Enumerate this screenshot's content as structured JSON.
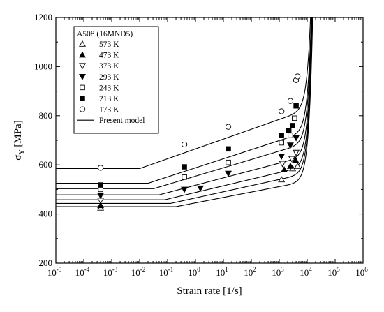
{
  "chart_data": {
    "type": "scatter",
    "xlabel": "Strain rate [1/s]",
    "ylabel_main": "σ",
    "ylabel_sub": "Y",
    "ylabel_unit": " [MPa]",
    "xscale": "log",
    "xlim_exp": [
      -5,
      6
    ],
    "ylim": [
      200,
      1200
    ],
    "yticks": [
      200,
      400,
      600,
      800,
      1000,
      1200
    ],
    "xtick_base": "10",
    "xtick_exponents": [
      "-5",
      "-4",
      "-3",
      "-2",
      "-1",
      "0",
      "1",
      "2",
      "3",
      "4",
      "5",
      "6"
    ],
    "legend": {
      "title": "A508 (16MND5)",
      "position": "top-left",
      "model_label": "Present model"
    },
    "series": [
      {
        "name": "573 K",
        "marker": "triangle-up-open",
        "x": [
          0.0004,
          1200,
          3000,
          4500
        ],
        "y": [
          425,
          540,
          585,
          595
        ]
      },
      {
        "name": "473 K",
        "marker": "triangle-up-filled",
        "x": [
          0.0004,
          1500,
          2500,
          3800
        ],
        "y": [
          435,
          580,
          595,
          620
        ]
      },
      {
        "name": "373 K",
        "marker": "triangle-down-open",
        "x": [
          0.0004,
          1300,
          2800,
          4000
        ],
        "y": [
          455,
          605,
          625,
          650
        ]
      },
      {
        "name": "293 K",
        "marker": "triangle-down-filled",
        "x": [
          0.0004,
          0.4,
          1.5,
          15,
          1200,
          2500,
          4000
        ],
        "y": [
          475,
          500,
          505,
          565,
          635,
          680,
          710
        ]
      },
      {
        "name": "243 K",
        "marker": "square-open",
        "x": [
          0.0004,
          0.4,
          15,
          1200,
          2500,
          3500
        ],
        "y": [
          500,
          550,
          610,
          690,
          720,
          790
        ]
      },
      {
        "name": "213 K",
        "marker": "square-filled",
        "x": [
          0.0004,
          0.4,
          15,
          1200,
          2200,
          3000,
          4000
        ],
        "y": [
          518,
          592,
          665,
          720,
          740,
          760,
          840
        ]
      },
      {
        "name": "173 K",
        "marker": "circle-open",
        "x": [
          0.0004,
          0.4,
          15,
          1200,
          2500,
          4000,
          4500
        ],
        "y": [
          588,
          683,
          755,
          818,
          860,
          945,
          960
        ]
      }
    ],
    "model_curves": [
      {
        "name": "573 K",
        "plateau": 430,
        "knee_exp": -0.7,
        "slope": 22
      },
      {
        "name": "473 K",
        "plateau": 443,
        "knee_exp": -0.9,
        "slope": 25
      },
      {
        "name": "373 K",
        "plateau": 458,
        "knee_exp": -1.1,
        "slope": 27
      },
      {
        "name": "293 K",
        "plateau": 478,
        "knee_exp": -1.3,
        "slope": 30
      },
      {
        "name": "243 K",
        "plateau": 503,
        "knee_exp": -1.5,
        "slope": 34
      },
      {
        "name": "213 K",
        "plateau": 525,
        "knee_exp": -1.7,
        "slope": 37
      },
      {
        "name": "173 K",
        "plateau": 585,
        "knee_exp": -2.0,
        "slope": 40
      }
    ]
  }
}
